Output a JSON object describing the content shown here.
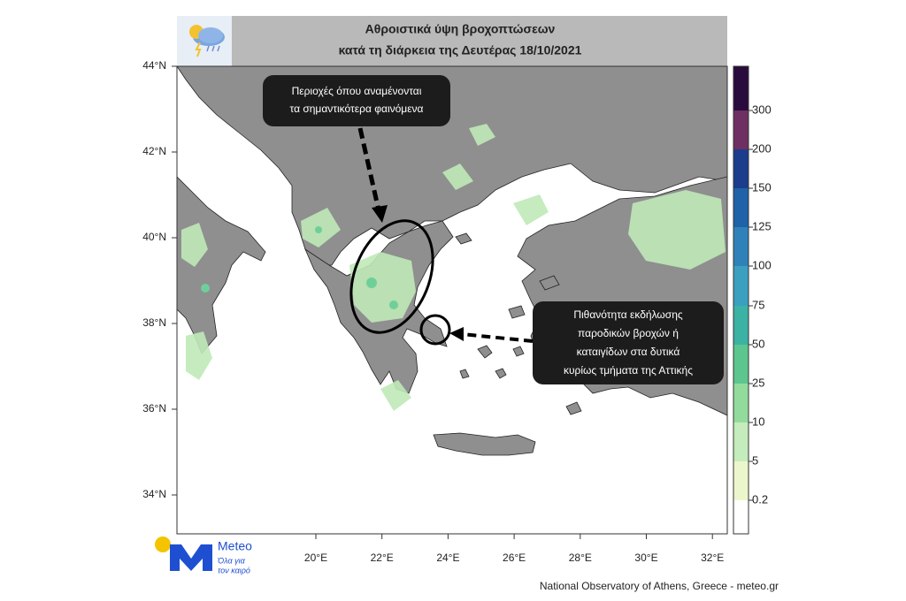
{
  "header": {
    "title_lines": [
      "Αθροιστικά ύψη βροχοπτώσεων",
      "κατά τη διάρκεια της Δευτέρας 18/10/2021"
    ]
  },
  "axes": {
    "lat_labels": [
      "44°N",
      "42°N",
      "40°N",
      "38°N",
      "36°N",
      "34°N"
    ],
    "lon_labels": [
      "20°E",
      "22°E",
      "24°E",
      "26°E",
      "28°E",
      "30°E",
      "32°E"
    ]
  },
  "colorbar": {
    "labels": [
      "300",
      "200",
      "150",
      "125",
      "100",
      "75",
      "50",
      "25",
      "10",
      "5",
      "0.2"
    ],
    "colors": [
      "#2a0b3d",
      "#6e2f62",
      "#1b3d8c",
      "#1f62a8",
      "#2f82b9",
      "#3b9fc0",
      "#3cb2a5",
      "#5cc68e",
      "#93db9c",
      "#c4ecbc",
      "#ecf6cc",
      "#ffffff"
    ]
  },
  "annotations": [
    {
      "lines": [
        "Περιοχές όπου αναμένονται",
        "τα σημαντικότερα φαινόμενα"
      ]
    },
    {
      "lines": [
        "Πιθανότητα εκδήλωσης",
        "παροδικών βροχών ή",
        "καταιγίδων στα δυτικά",
        "κυρίως τμήματα της Αττικής"
      ]
    }
  ],
  "logo": {
    "name": "Meteo",
    "tagline": [
      "Όλα για",
      "τον καιρό"
    ]
  },
  "footer": "National Observatory of Athens, Greece - meteo.gr"
}
